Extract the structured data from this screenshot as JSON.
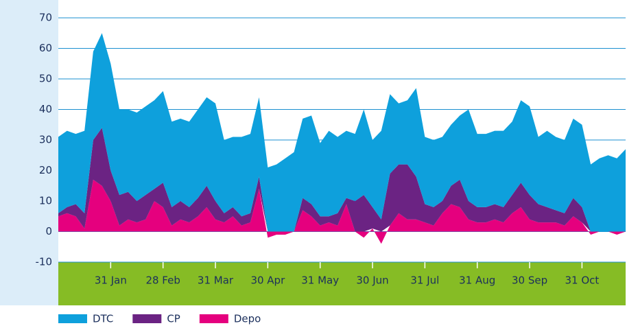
{
  "chart_data": {
    "type": "stacked_area",
    "categories": [
      null,
      null,
      null,
      null,
      null,
      null,
      "31 Jan",
      null,
      null,
      null,
      null,
      null,
      "28 Feb",
      null,
      null,
      null,
      null,
      null,
      "31 Mar",
      null,
      null,
      null,
      null,
      null,
      "30 Apr",
      null,
      null,
      null,
      null,
      null,
      "31 May",
      null,
      null,
      null,
      null,
      null,
      "30 Jun",
      null,
      null,
      null,
      null,
      null,
      "31 Jul",
      null,
      null,
      null,
      null,
      null,
      "31 Aug",
      null,
      null,
      null,
      null,
      null,
      "30 Sep",
      null,
      null,
      null,
      null,
      null,
      "31 Oct",
      null,
      null,
      null,
      null,
      null
    ],
    "series": [
      {
        "name": "DTC",
        "color": "#0ea0dc",
        "values": [
          25,
          25,
          23,
          27,
          29,
          31,
          35,
          28,
          27,
          29,
          29,
          29,
          30,
          28,
          27,
          28,
          29,
          29,
          32,
          24,
          23,
          26,
          26,
          26,
          21,
          22,
          24,
          26,
          26,
          29,
          24,
          28,
          25,
          22,
          22,
          28,
          22,
          29,
          26,
          20,
          21,
          29,
          22,
          22,
          21,
          20,
          21,
          30,
          24,
          24,
          24,
          25,
          24,
          27,
          29,
          22,
          25,
          24,
          24,
          26,
          27,
          22,
          24,
          25,
          24,
          27
        ]
      },
      {
        "name": "CP",
        "color": "#6b2383",
        "values": [
          1,
          2,
          4,
          5,
          13,
          19,
          10,
          10,
          9,
          7,
          8,
          4,
          8,
          6,
          6,
          5,
          6,
          7,
          6,
          3,
          3,
          3,
          3,
          4,
          0,
          0,
          0,
          0,
          4,
          4,
          3,
          2,
          4,
          2,
          10,
          12,
          7,
          4,
          17,
          16,
          18,
          14,
          6,
          6,
          4,
          6,
          9,
          6,
          5,
          5,
          5,
          5,
          6,
          8,
          8,
          6,
          5,
          4,
          4,
          6,
          5,
          0,
          0,
          0,
          0,
          0
        ]
      },
      {
        "name": "Depo",
        "color": "#e5007e",
        "values": [
          5,
          6,
          5,
          1,
          17,
          15,
          10,
          2,
          4,
          3,
          4,
          10,
          8,
          2,
          4,
          3,
          5,
          8,
          4,
          3,
          5,
          2,
          3,
          14,
          -2,
          -1,
          -1,
          0,
          7,
          5,
          2,
          3,
          2,
          9,
          0,
          -2,
          1,
          -4,
          2,
          6,
          4,
          4,
          3,
          2,
          6,
          9,
          8,
          4,
          3,
          3,
          4,
          3,
          6,
          8,
          4,
          3,
          3,
          3,
          2,
          5,
          3,
          -1,
          0,
          0,
          -1,
          0
        ]
      }
    ],
    "ylim": [
      -10,
      70
    ],
    "yticks": [
      -10,
      0,
      10,
      20,
      30,
      40,
      50,
      60,
      70
    ],
    "grid": true
  }
}
